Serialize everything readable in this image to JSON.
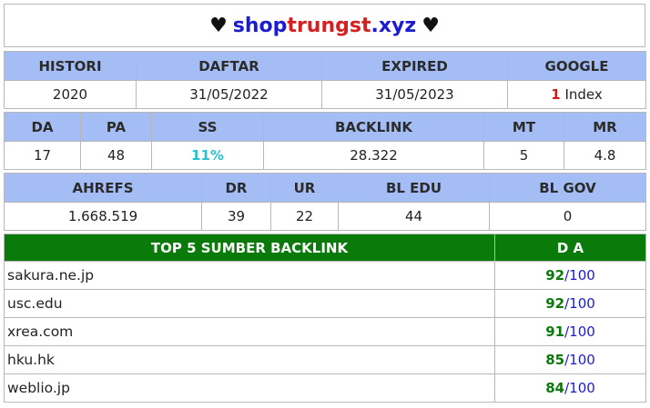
{
  "title": {
    "heart_left": "♥",
    "part1": "shop",
    "part2": "trungst",
    "part3": ".xyz",
    "heart_right": "♥"
  },
  "info": {
    "headers": [
      "HISTORI",
      "DAFTAR",
      "EXPIRED",
      "GOOGLE"
    ],
    "histori": "2020",
    "daftar": "31/05/2022",
    "expired": "31/05/2023",
    "google_count": "1",
    "google_label": " Index"
  },
  "metrics": {
    "headers": [
      "DA",
      "PA",
      "SS",
      "BACKLINK",
      "MT",
      "MR"
    ],
    "values": [
      "17",
      "48",
      "11%",
      "28.322",
      "5",
      "4.8"
    ]
  },
  "ahrefs": {
    "headers": [
      "AHREFS",
      "DR",
      "UR",
      "BL EDU",
      "BL GOV"
    ],
    "values": [
      "1.668.519",
      "39",
      "22",
      "44",
      "0"
    ]
  },
  "backlinks": {
    "header_source": "TOP 5 SUMBER BACKLINK",
    "header_da": "D A",
    "da_max": "/100",
    "rows": [
      {
        "site": "sakura.ne.jp",
        "da": "92"
      },
      {
        "site": "usc.edu",
        "da": "92"
      },
      {
        "site": "xrea.com",
        "da": "91"
      },
      {
        "site": "hku.hk",
        "da": "85"
      },
      {
        "site": "weblio.jp",
        "da": "84"
      }
    ]
  }
}
